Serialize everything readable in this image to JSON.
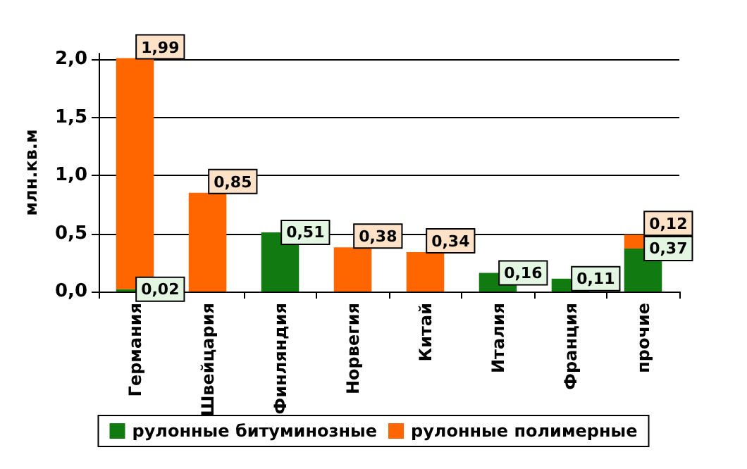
{
  "chart_data": {
    "type": "bar",
    "stacked": true,
    "ylabel": "млн.кв.м",
    "categories": [
      "Германия",
      "Швейцария",
      "Финляндия",
      "Норвегия",
      "Китай",
      "Италия",
      "Франция",
      "прочие"
    ],
    "series": [
      {
        "name": "рулонные битуминозные",
        "color": "#117a11",
        "values": [
          0.02,
          null,
          0.51,
          null,
          null,
          0.16,
          0.11,
          0.37
        ],
        "value_labels": [
          "0,02",
          null,
          "0,51",
          null,
          null,
          "0,16",
          "0,11",
          "0,37"
        ]
      },
      {
        "name": "рулонные полимерные",
        "color": "#ff6600",
        "values": [
          1.99,
          0.85,
          null,
          0.38,
          0.34,
          null,
          null,
          0.12
        ],
        "value_labels": [
          "1,99",
          "0,85",
          null,
          "0,38",
          "0,34",
          null,
          null,
          "0,12"
        ]
      }
    ],
    "ylim": [
      0,
      2.05
    ],
    "yticks": [
      {
        "value": 0,
        "label": "0,0"
      },
      {
        "value": 0.5,
        "label": "0,5"
      },
      {
        "value": 1,
        "label": "1,0"
      },
      {
        "value": 1.5,
        "label": "1,5"
      },
      {
        "value": 2,
        "label": "2,0"
      }
    ],
    "grid": "y",
    "legend": "bottom"
  }
}
